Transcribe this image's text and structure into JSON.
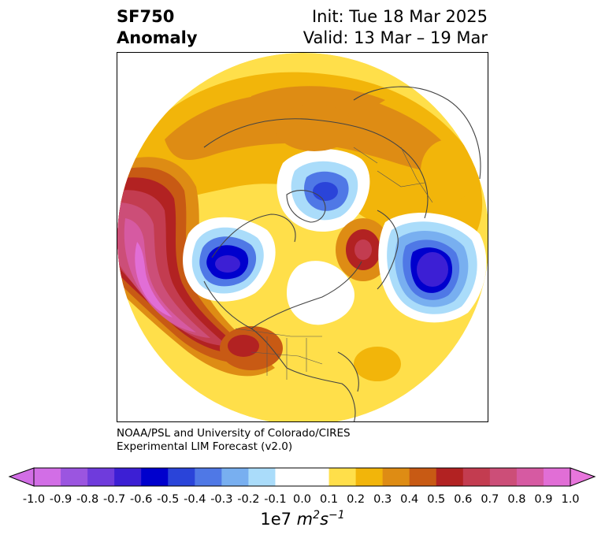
{
  "title": {
    "variable": "SF750",
    "subtitle": "Anomaly",
    "init": "Init: Tue 18 Mar 2025",
    "valid": "Valid: 13 Mar – 19 Mar"
  },
  "credit": {
    "line1": "NOAA/PSL and University of Colorado/CIRES",
    "line2": "Experimental LIM Forecast (v2.0)"
  },
  "colorbar": {
    "ticks": [
      "-1.0",
      "-0.9",
      "-0.8",
      "-0.7",
      "-0.6",
      "-0.5",
      "-0.4",
      "-0.3",
      "-0.2",
      "-0.1",
      "0.0",
      "0.1",
      "0.2",
      "0.3",
      "0.4",
      "0.5",
      "0.6",
      "0.7",
      "0.8",
      "0.9",
      "1.0"
    ],
    "colors": [
      "#d26ee6",
      "#9b55e0",
      "#6f3bdc",
      "#3c1fd4",
      "#0000cd",
      "#2a44d9",
      "#4f78e6",
      "#78aff0",
      "#aadcfa",
      "#ffffff",
      "#ffffff",
      "#ffdf4a",
      "#f2b50a",
      "#de8c14",
      "#c85a14",
      "#b22222",
      "#c33c50",
      "#cc4e78",
      "#d65aa2",
      "#e16ed6"
    ],
    "extend_low_color": "#d26ee6",
    "extend_high_color": "#e876dc",
    "unit_base": "1e7",
    "unit_m": "m",
    "unit_m_exp": "2",
    "unit_s": "s",
    "unit_s_exp": "−1"
  }
}
